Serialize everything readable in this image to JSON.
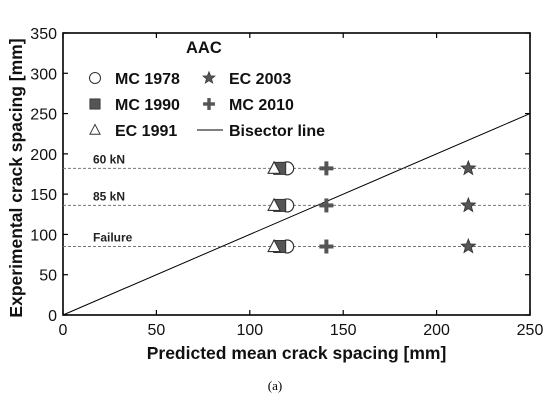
{
  "chart_data": {
    "type": "scatter",
    "xlabel": "Predicted mean crack spacing [mm]",
    "ylabel": "Experimental crack spacing [mm]",
    "xlim": [
      0,
      250
    ],
    "ylim": [
      0,
      350
    ],
    "xticks": [
      0,
      50,
      100,
      150,
      200,
      250
    ],
    "yticks": [
      0,
      50,
      100,
      150,
      200,
      250,
      300,
      350
    ],
    "grid": false,
    "legend": {
      "title": "AAC",
      "placement": "top-left"
    },
    "reference_lines": [
      {
        "label": "60 kN",
        "y": 182
      },
      {
        "label": "85 kN",
        "y": 136
      },
      {
        "label": "Failure",
        "y": 85
      }
    ],
    "series": [
      {
        "name": "MC 1978",
        "marker": "circle-open",
        "points": [
          [
            120,
            182
          ],
          [
            120,
            136
          ],
          [
            120,
            85
          ]
        ]
      },
      {
        "name": "MC 1990",
        "marker": "square-filled",
        "points": [
          [
            116,
            182
          ],
          [
            116,
            136
          ],
          [
            116,
            85
          ]
        ]
      },
      {
        "name": "EC 1991",
        "marker": "triangle-open",
        "points": [
          [
            113,
            182
          ],
          [
            113,
            136
          ],
          [
            113,
            85
          ]
        ]
      },
      {
        "name": "EC 2003",
        "marker": "star",
        "points": [
          [
            217,
            182
          ],
          [
            217,
            136
          ],
          [
            217,
            85
          ]
        ]
      },
      {
        "name": "MC 2010",
        "marker": "plus",
        "points": [
          [
            141,
            182
          ],
          [
            141,
            136
          ],
          [
            141,
            85
          ]
        ]
      },
      {
        "name": "Bisector line",
        "marker": "line",
        "points": [
          [
            0,
            0
          ],
          [
            250,
            250
          ]
        ]
      }
    ]
  },
  "caption": "(a)"
}
